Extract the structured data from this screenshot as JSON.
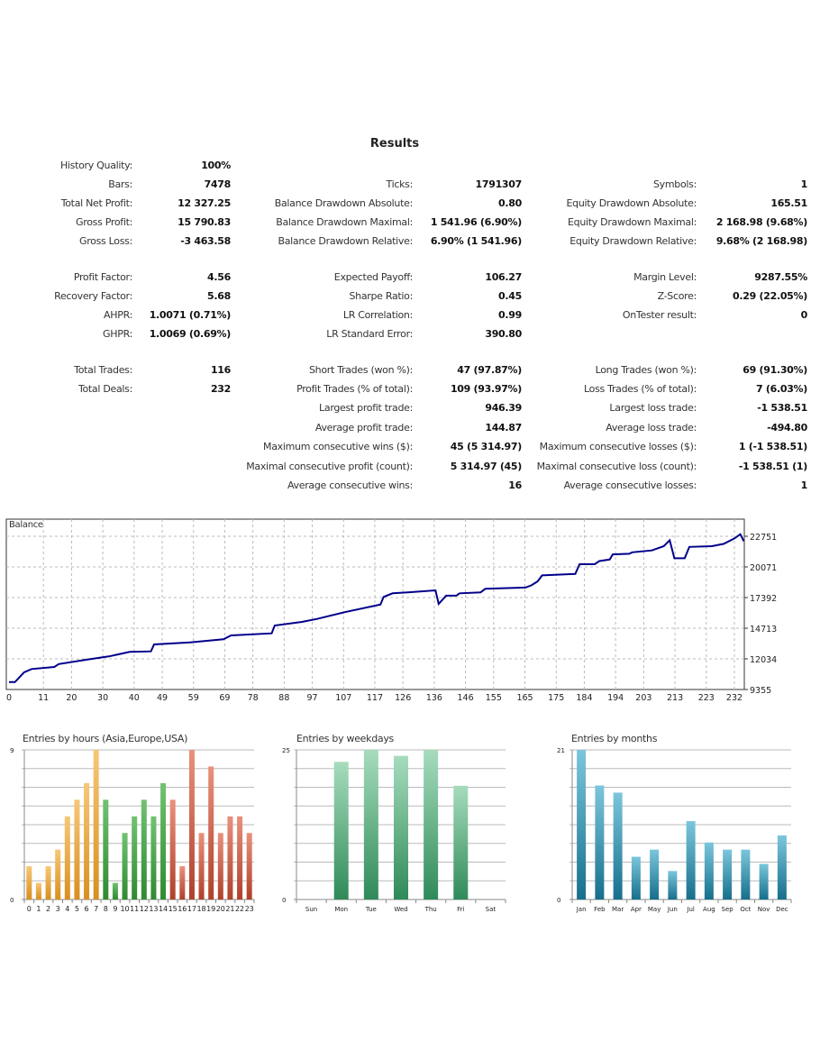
{
  "title": "Results",
  "rows": [
    [
      [
        "History Quality:",
        "100%"
      ]
    ],
    [
      [
        "Bars:",
        "7478"
      ],
      [
        "Ticks:",
        "1791307"
      ],
      [
        "Symbols:",
        "1"
      ]
    ],
    [
      [
        "Total Net Profit:",
        "12 327.25"
      ],
      [
        "Balance Drawdown Absolute:",
        "0.80"
      ],
      [
        "Equity Drawdown Absolute:",
        "165.51"
      ]
    ],
    [
      [
        "Gross Profit:",
        "15 790.83"
      ],
      [
        "Balance Drawdown Maximal:",
        "1 541.96 (6.90%)"
      ],
      [
        "Equity Drawdown Maximal:",
        "2 168.98 (9.68%)"
      ]
    ],
    [
      [
        "Gross Loss:",
        "-3 463.58"
      ],
      [
        "Balance Drawdown Relative:",
        "6.90% (1 541.96)"
      ],
      [
        "Equity Drawdown Relative:",
        "9.68% (2 168.98)"
      ]
    ],
    [
      [
        "Profit Factor:",
        "4.56"
      ],
      [
        "Expected Payoff:",
        "106.27"
      ],
      [
        "Margin Level:",
        "9287.55%"
      ]
    ],
    [
      [
        "Recovery Factor:",
        "5.68"
      ],
      [
        "Sharpe Ratio:",
        "0.45"
      ],
      [
        "Z-Score:",
        "0.29 (22.05%)"
      ]
    ],
    [
      [
        "AHPR:",
        "1.0071 (0.71%)"
      ],
      [
        "LR Correlation:",
        "0.99"
      ],
      [
        "OnTester result:",
        "0"
      ]
    ],
    [
      [
        "GHPR:",
        "1.0069 (0.69%)"
      ],
      [
        "LR Standard Error:",
        "390.80"
      ]
    ],
    [
      [
        "Total Trades:",
        "116"
      ],
      [
        "Short Trades (won %):",
        "47 (97.87%)"
      ],
      [
        "Long Trades (won %):",
        "69 (91.30%)"
      ]
    ],
    [
      [
        "Total Deals:",
        "232"
      ],
      [
        "Profit Trades (% of total):",
        "109 (93.97%)"
      ],
      [
        "Loss Trades (% of total):",
        "7 (6.03%)"
      ]
    ],
    [
      null,
      [
        "Largest profit trade:",
        "946.39"
      ],
      [
        "Largest loss trade:",
        "-1 538.51"
      ]
    ],
    [
      null,
      [
        "Average profit trade:",
        "144.87"
      ],
      [
        "Average loss trade:",
        "-494.80"
      ]
    ],
    [
      null,
      [
        "Maximum consecutive wins ($):",
        "45 (5 314.97)"
      ],
      [
        "Maximum consecutive losses ($):",
        "1 (-1 538.51)"
      ]
    ],
    [
      null,
      [
        "Maximal consecutive profit (count):",
        "5 314.97 (45)"
      ],
      [
        "Maximal consecutive loss (count):",
        "-1 538.51 (1)"
      ]
    ],
    [
      null,
      [
        "Average consecutive wins:",
        "16"
      ],
      [
        "Average consecutive losses:",
        "1"
      ]
    ]
  ],
  "chart_data": [
    {
      "type": "line",
      "title": "Balance",
      "series": [
        {
          "name": "Balance",
          "color": "#00008b",
          "x": [
            0,
            1.9,
            4.8,
            7.2,
            14.5,
            15.9,
            25.1,
            31.9,
            38.6,
            45.4,
            46.4,
            57.9,
            68.6,
            71,
            84,
            85,
            93.7,
            98.5,
            107.2,
            118.8,
            119.8,
            122.7,
            127.5,
            136.4,
            137.4,
            139.8,
            143.1,
            144.1,
            150.8,
            152.3,
            165.2,
            167.1,
            169.1,
            170.5,
            181.1,
            182.5,
            187.3,
            188.8,
            192.1,
            193.1,
            198.4,
            199.3,
            205.6,
            209.4,
            211.3,
            212.8,
            216.1,
            217.6,
            224.8,
            228.6,
            232,
            233.9,
            235
          ],
          "y": [
            10000,
            10000,
            10852,
            11144,
            11327,
            11580,
            11979,
            12247,
            12640,
            12690,
            13295,
            13478,
            13745,
            14085,
            14264,
            14950,
            15265,
            15525,
            16107,
            16788,
            17447,
            17762,
            17842,
            18022,
            16840,
            17560,
            17560,
            17762,
            17842,
            18155,
            18270,
            18460,
            18810,
            19330,
            19460,
            20310,
            20310,
            20580,
            20720,
            21170,
            21220,
            21350,
            21510,
            21880,
            22400,
            20830,
            20830,
            21820,
            21880,
            22090,
            22560,
            22930,
            22327
          ]
        }
      ],
      "xticks": [
        0,
        11,
        20,
        30,
        40,
        49,
        59,
        69,
        78,
        88,
        97,
        107,
        117,
        126,
        136,
        146,
        155,
        165,
        175,
        184,
        194,
        203,
        213,
        223,
        232
      ],
      "yticks": [
        9355,
        12034,
        14713,
        17392,
        20071,
        22751
      ],
      "xlim": [
        0,
        235
      ],
      "ylim": [
        9355,
        24100
      ],
      "grid": true
    },
    {
      "type": "bar",
      "title": "Entries by hours (Asia,Europe,USA)",
      "categories": [
        "0",
        "1",
        "2",
        "3",
        "4",
        "5",
        "6",
        "7",
        "8",
        "9",
        "10",
        "11",
        "12",
        "13",
        "14",
        "15",
        "16",
        "17",
        "18",
        "19",
        "20",
        "21",
        "22",
        "23"
      ],
      "values": [
        2,
        1,
        2,
        3,
        5,
        6,
        7,
        9,
        6,
        1,
        4,
        5,
        6,
        5,
        7,
        6,
        2,
        9,
        4,
        8,
        4,
        5,
        5,
        4
      ],
      "colors": {
        "asia": "#e3a035",
        "europe": "#3d9a40",
        "usa": "#c0503a"
      },
      "ylim": [
        0,
        9
      ],
      "yticks": [
        "0",
        "9"
      ],
      "grid": true
    },
    {
      "type": "bar",
      "title": "Entries by weekdays",
      "categories": [
        "Sun",
        "Mon",
        "Tue",
        "Wed",
        "Thu",
        "Fri",
        "Sat"
      ],
      "values": [
        0,
        23,
        25,
        24,
        25,
        19,
        0
      ],
      "color": "#3f9a6a",
      "ylim": [
        0,
        25
      ],
      "yticks": [
        "0",
        "25"
      ],
      "grid": true
    },
    {
      "type": "bar",
      "title": "Entries by months",
      "categories": [
        "Jan",
        "Feb",
        "Mar",
        "Apr",
        "May",
        "Jun",
        "Jul",
        "Aug",
        "Sep",
        "Oct",
        "Nov",
        "Dec"
      ],
      "values": [
        21,
        16,
        15,
        6,
        7,
        4,
        11,
        8,
        7,
        7,
        5,
        9
      ],
      "color": "#1e7f9c",
      "ylim": [
        0,
        21
      ],
      "yticks": [
        "0",
        "21"
      ],
      "grid": true
    }
  ]
}
